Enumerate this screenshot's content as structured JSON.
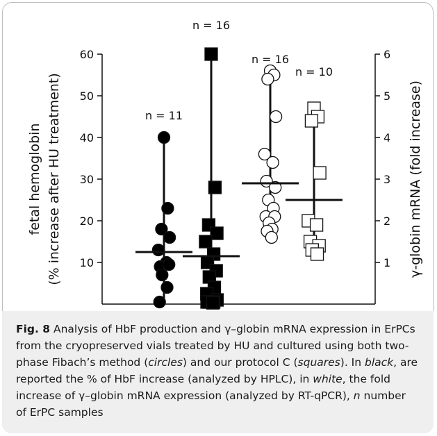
{
  "caption": {
    "fig_label": "Fig. 8",
    "segments": [
      {
        "text": "  Analysis of HbF production and γ–globin mRNA expression in ErPCs from the cryopreserved vials treated by HU and cultured using both two-phase Fibach’s method (",
        "style": "normal"
      },
      {
        "text": "circles",
        "style": "italic"
      },
      {
        "text": ") and our protocol C (",
        "style": "normal"
      },
      {
        "text": "squares",
        "style": "italic"
      },
      {
        "text": "). In ",
        "style": "normal"
      },
      {
        "text": "black",
        "style": "italic"
      },
      {
        "text": ", are reported the % of HbF increase (analyzed by HPLC), in ",
        "style": "normal"
      },
      {
        "text": "white",
        "style": "italic"
      },
      {
        "text": ", the fold increase of γ–globin mRNA expression (analyzed by RT-qPCR), ",
        "style": "normal"
      },
      {
        "text": "n",
        "style": "italic"
      },
      {
        "text": " number of ErPC samples",
        "style": "normal"
      }
    ]
  },
  "chart_data": {
    "type": "scatter",
    "left_axis": {
      "label_lines": [
        "fetal hemoglobin",
        "(% increase after HU treatment)"
      ],
      "ticks": [
        10,
        20,
        30,
        40,
        50,
        60
      ],
      "ylim": [
        0,
        60
      ]
    },
    "right_axis": {
      "label": "γ-globin mRNA (fold increase)",
      "ticks": [
        1,
        2,
        3,
        4,
        5,
        6
      ],
      "ylim": [
        0,
        6
      ]
    },
    "groups": [
      {
        "id": "hbf-circles",
        "marker": "circle",
        "fill": "#000000",
        "axis": "left",
        "n_label": "n = 11",
        "values": [
          40,
          23,
          18,
          16,
          13,
          10,
          9,
          9.5,
          7,
          4,
          0.5
        ],
        "mean": 12.5,
        "range": [
          0,
          40
        ]
      },
      {
        "id": "hbf-squares",
        "marker": "square",
        "fill": "#000000",
        "axis": "left",
        "n_label": "n = 16",
        "values": [
          60,
          28,
          19,
          17,
          15,
          12,
          10,
          8,
          6.5,
          4,
          2.5,
          1,
          0.5,
          0.5,
          0.5,
          0.3
        ],
        "mean": 11.5,
        "range": [
          0,
          60
        ]
      },
      {
        "id": "mrna-circles",
        "marker": "circle",
        "fill": "#ffffff",
        "axis": "right",
        "n_label": "n = 16",
        "values": [
          5.6,
          5.5,
          5.4,
          4.5,
          3.6,
          3.4,
          2.95,
          2.8,
          2.5,
          2.3,
          2.1,
          2.1,
          1.95,
          1.8,
          1.75,
          1.6
        ],
        "mean": 2.9,
        "range": [
          1.6,
          5.6
        ]
      },
      {
        "id": "mrna-squares",
        "marker": "square",
        "fill": "#ffffff",
        "axis": "right",
        "n_label": "n = 10",
        "values": [
          4.7,
          4.5,
          4.4,
          3.15,
          2.0,
          1.9,
          1.5,
          1.4,
          1.3,
          1.2
        ],
        "mean": 2.5,
        "range": [
          1.2,
          4.8
        ]
      }
    ]
  }
}
